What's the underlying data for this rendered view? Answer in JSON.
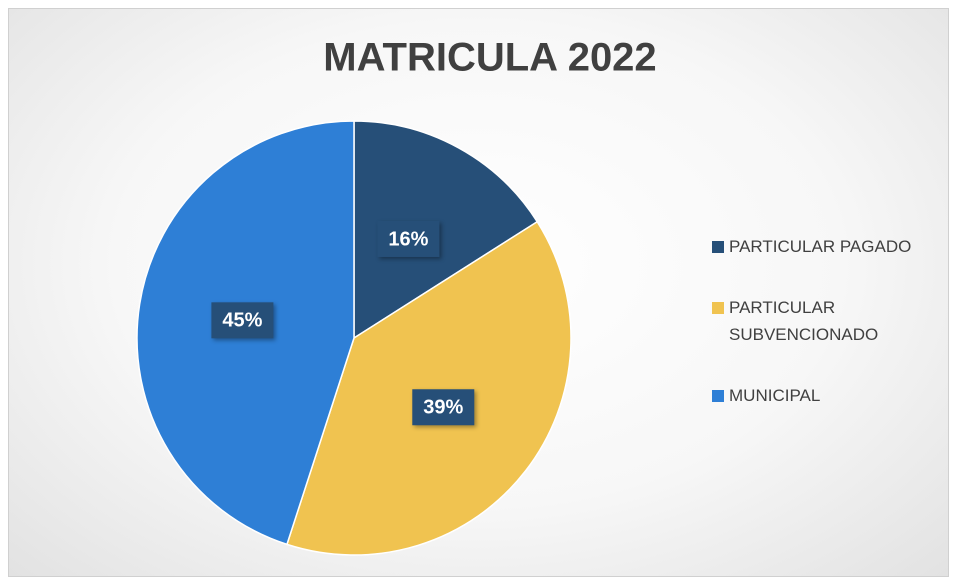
{
  "chart_data": {
    "type": "pie",
    "title": "MATRICULA 2022",
    "categories": [
      "PARTICULAR PAGADO",
      "PARTICULAR SUBVENCIONADO",
      "MUNICIPAL"
    ],
    "values": [
      16,
      39,
      45
    ],
    "value_labels": [
      "16%",
      "39%",
      "45%"
    ],
    "colors": [
      "#264f78",
      "#f0c350",
      "#2e7fd6"
    ],
    "legend": "right"
  }
}
